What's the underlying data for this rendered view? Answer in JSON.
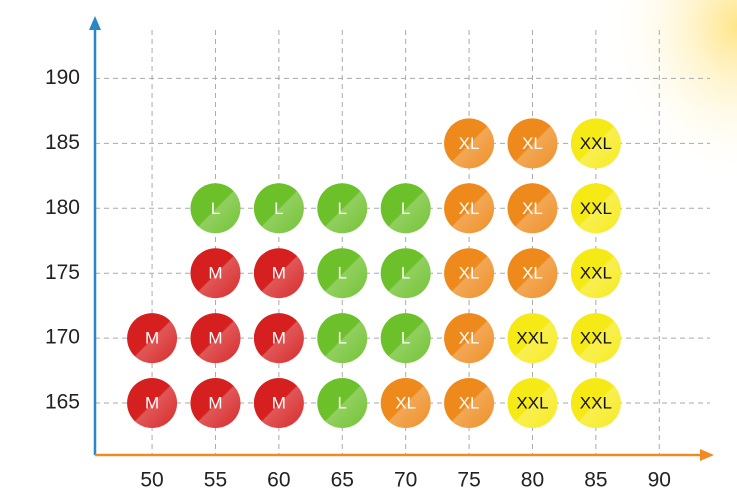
{
  "chart_data": {
    "type": "scatter",
    "xlim": [
      45.5,
      94
    ],
    "xticks": [
      50,
      55,
      60,
      65,
      70,
      75,
      80,
      85,
      90
    ],
    "ylim": [
      161,
      194.5
    ],
    "yticks": [
      165,
      170,
      175,
      180,
      185,
      190
    ],
    "grid": true,
    "axis_color": "#2b86c5",
    "x_axis_color": "#f08a24",
    "series": [
      {
        "name": "M",
        "color": "#d61f1f",
        "text_color": "#ffffff",
        "x": [
          50,
          55,
          60,
          50,
          55,
          60,
          55,
          60
        ],
        "y": [
          165,
          165,
          165,
          170,
          170,
          170,
          175,
          175
        ]
      },
      {
        "name": "L",
        "color": "#6cc02a",
        "text_color": "#ffffff",
        "x": [
          65,
          65,
          70,
          65,
          70,
          55,
          60,
          65,
          70
        ],
        "y": [
          165,
          170,
          170,
          175,
          175,
          180,
          180,
          180,
          180
        ]
      },
      {
        "name": "XL",
        "color": "#ee8a1c",
        "text_color": "#ffffff",
        "x": [
          70,
          75,
          75,
          75,
          80,
          75,
          80,
          75,
          80
        ],
        "y": [
          165,
          165,
          170,
          175,
          175,
          180,
          180,
          185,
          185
        ]
      },
      {
        "name": "XXL",
        "color": "#f6ea16",
        "text_color": "#111111",
        "x": [
          80,
          85,
          80,
          85,
          85,
          85,
          85
        ],
        "y": [
          165,
          165,
          170,
          170,
          175,
          180,
          185
        ]
      }
    ]
  }
}
